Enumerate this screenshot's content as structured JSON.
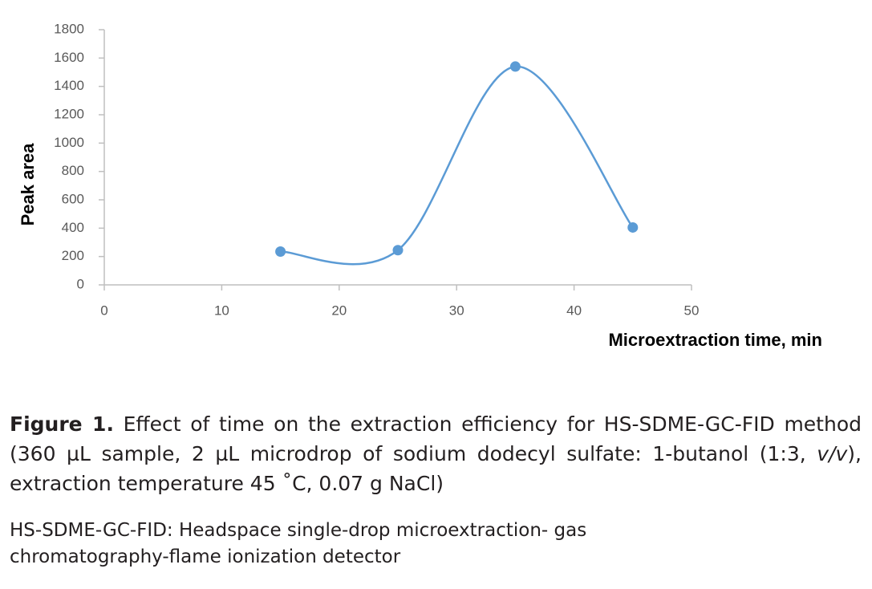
{
  "chart_data": {
    "type": "line",
    "smooth": true,
    "markers": true,
    "color": "#5b9bd5",
    "x": [
      15,
      25,
      35,
      45
    ],
    "values": [
      235,
      245,
      1540,
      405
    ],
    "xlim": [
      0,
      50
    ],
    "xticks": [
      0,
      10,
      20,
      30,
      40,
      50
    ],
    "ylim": [
      0,
      1800
    ],
    "yticks": [
      0,
      200,
      400,
      600,
      800,
      1000,
      1200,
      1400,
      1600,
      1800
    ],
    "xlabel": "Microextraction time, min",
    "ylabel": "Peak area"
  },
  "caption": {
    "label": "Figure 1.",
    "parts": [
      "Effect of time on the extraction efficiency for HS-SDME-GC-FID method (360 µL sample, 2 µL microdrop of sodium dodecyl sulfate: 1-butanol (1:3, ",
      "v/v",
      "), extraction temperature 45 ˚C, 0.07 g NaCl)"
    ]
  },
  "footnote": "HS-SDME-GC-FID: Headspace single-drop microextraction- gas chromatography-flame ionization detector"
}
